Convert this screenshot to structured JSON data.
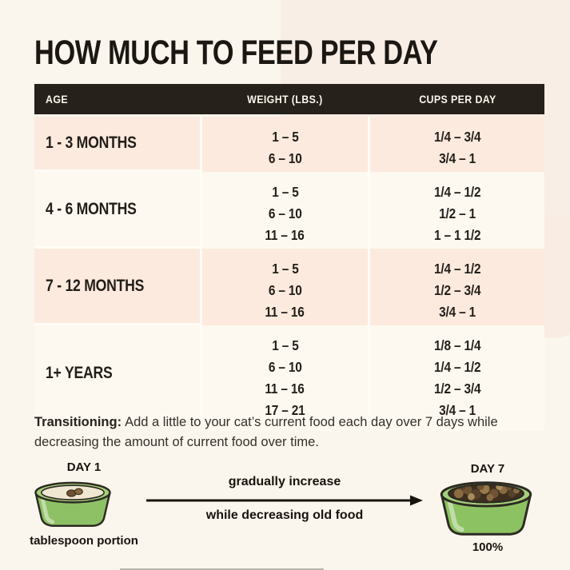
{
  "title": "HOW MUCH TO FEED PER DAY",
  "chart_data": {
    "type": "table",
    "title": "HOW MUCH TO FEED PER DAY",
    "columns": [
      "AGE",
      "WEIGHT (LBS.)",
      "CUPS PER DAY"
    ],
    "rows": [
      {
        "age": "1 - 3 MONTHS",
        "weight_lbs": [
          "1 – 5",
          "6 – 10"
        ],
        "cups_per_day": [
          "1/4 – 3/4",
          "3/4 – 1"
        ]
      },
      {
        "age": "4 - 6 MONTHS",
        "weight_lbs": [
          "1 – 5",
          "6 – 10",
          "11 – 16"
        ],
        "cups_per_day": [
          "1/4 – 1/2",
          "1/2 – 1",
          "1 – 1 1/2"
        ]
      },
      {
        "age": "7 - 12 MONTHS",
        "weight_lbs": [
          "1 – 5",
          "6 – 10",
          "11 – 16"
        ],
        "cups_per_day": [
          "1/4 – 1/2",
          "1/2 – 3/4",
          "3/4 – 1"
        ]
      },
      {
        "age": "1+ YEARS",
        "weight_lbs": [
          "1 – 5",
          "6 – 10",
          "11 – 16",
          "17 – 21"
        ],
        "cups_per_day": [
          "1/8 – 1/4",
          "1/4 – 1/2",
          "1/2 – 3/4",
          "3/4 – 1"
        ]
      }
    ]
  },
  "transition": {
    "label": "Transitioning:",
    "text": "Add a little to your cat’s current food each day over 7 days while decreasing the amount of current food over time."
  },
  "diagram": {
    "day1": {
      "title": "DAY 1",
      "caption": "tablespoon portion"
    },
    "day7": {
      "title": "DAY 7",
      "caption": "100%"
    },
    "arrow_top": "gradually increase",
    "arrow_bottom": "while decreasing old food"
  },
  "colors": {
    "page_bg": "#fbf6ed",
    "page_bg_right": "#f8eee6",
    "header_bg": "#26211b",
    "header_text": "#fbf5ec",
    "row_pink": "#fceade",
    "row_cream": "#fdf9f1",
    "text_dark": "#221e19",
    "bowl_green": "#8ec166",
    "bowl_rim_green": "#a6d07c",
    "kibble_brown": "#6f5233"
  }
}
